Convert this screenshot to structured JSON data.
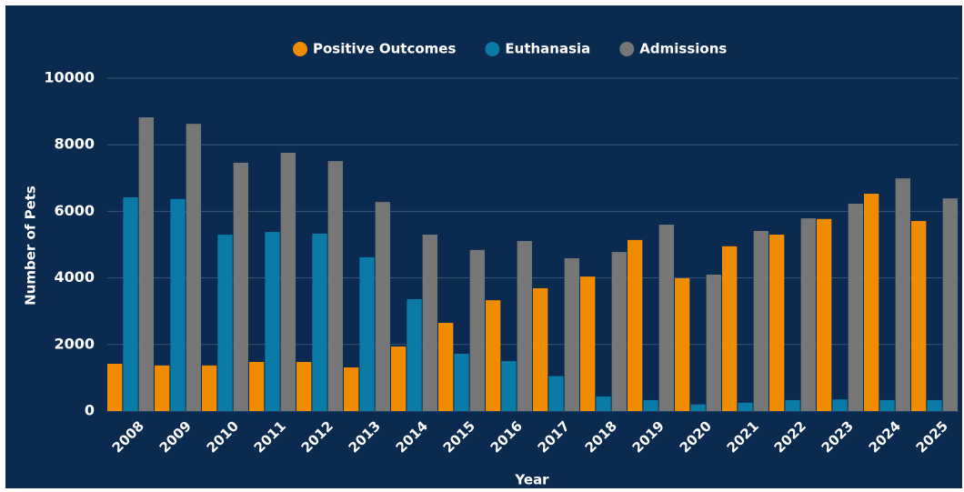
{
  "chart_data": {
    "type": "bar",
    "x_label": "Year",
    "y_label": "Number of Pets",
    "categories": [
      "2008",
      "2009",
      "2010",
      "2011",
      "2012",
      "2013",
      "2014",
      "2015",
      "2016",
      "2017",
      "2018",
      "2019",
      "2020",
      "2021",
      "2022",
      "2023",
      "2024",
      "2025"
    ],
    "series": [
      {
        "name": "Positive Outcomes",
        "color": "#f08c00",
        "values": [
          1420,
          1370,
          1370,
          1475,
          1475,
          1310,
          1940,
          2650,
          3330,
          3690,
          4040,
          5140,
          3990,
          4950,
          5300,
          5770,
          6530,
          5710
        ]
      },
      {
        "name": "Euthanasia",
        "color": "#0a7aa6",
        "values": [
          6420,
          6370,
          5300,
          5380,
          5330,
          4620,
          3360,
          1720,
          1500,
          1050,
          440,
          330,
          200,
          250,
          330,
          350,
          330,
          330
        ]
      },
      {
        "name": "Admissions",
        "color": "#767676",
        "values": [
          8825,
          8630,
          7460,
          7760,
          7510,
          6280,
          5300,
          4840,
          5110,
          4590,
          4780,
          5600,
          4100,
          5410,
          5790,
          6230,
          6990,
          6390
        ]
      }
    ],
    "ylim": [
      0,
      10000
    ],
    "yticks": [
      0,
      2000,
      4000,
      6000,
      8000,
      10000
    ],
    "grid": true
  }
}
